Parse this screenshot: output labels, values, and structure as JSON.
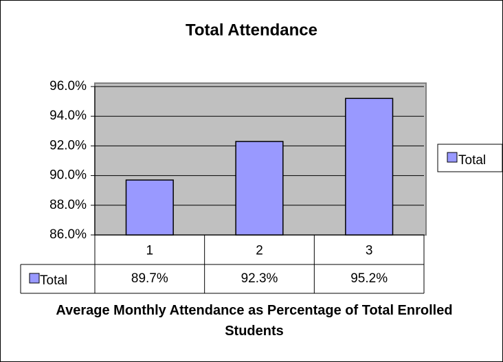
{
  "chart_data": {
    "type": "bar",
    "title": "Total Attendance",
    "x_label": "Average Monthly Attendance as Percentage of Total Enrolled Students",
    "categories": [
      "1",
      "2",
      "3"
    ],
    "series": [
      {
        "name": "Total",
        "color": "#9999ff",
        "values": [
          89.7,
          92.3,
          95.2
        ],
        "value_labels": [
          "89.7%",
          "92.3%",
          "95.2%"
        ]
      }
    ],
    "ylim": [
      86,
      96
    ],
    "yticks": [
      {
        "value": 86,
        "label": "86.0%"
      },
      {
        "value": 88,
        "label": "88.0%"
      },
      {
        "value": 90,
        "label": "90.0%"
      },
      {
        "value": 92,
        "label": "92.0%"
      },
      {
        "value": 94,
        "label": "94.0%"
      },
      {
        "value": 96,
        "label": "96.0%"
      }
    ],
    "grid": true,
    "legend": "right",
    "plot_background": "#c0c0c0",
    "data_table": true
  }
}
